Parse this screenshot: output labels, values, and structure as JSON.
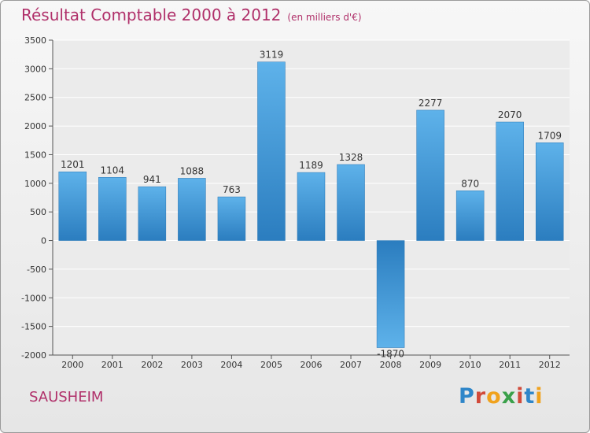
{
  "chart_data": {
    "type": "bar",
    "title": "Résultat Comptable 2000 à 2012",
    "subtitle": "(en milliers d'€)",
    "xlabel": "",
    "ylabel": "",
    "categories": [
      "2000",
      "2001",
      "2002",
      "2003",
      "2004",
      "2005",
      "2006",
      "2007",
      "2008",
      "2009",
      "2010",
      "2011",
      "2012"
    ],
    "values": [
      1201,
      1104,
      941,
      1088,
      763,
      3119,
      1189,
      1328,
      -1870,
      2277,
      870,
      2070,
      1709
    ],
    "ylim": [
      -2000,
      3500
    ],
    "yticks": [
      -2000,
      -1500,
      -1000,
      -500,
      0,
      500,
      1000,
      1500,
      2000,
      2500,
      3000,
      3500
    ],
    "grid": true,
    "bar_color": "#3e95d8",
    "title_color": "#b0306a"
  },
  "footer": {
    "town": "SAUSHEIM",
    "logo_text": "Proxiti"
  }
}
